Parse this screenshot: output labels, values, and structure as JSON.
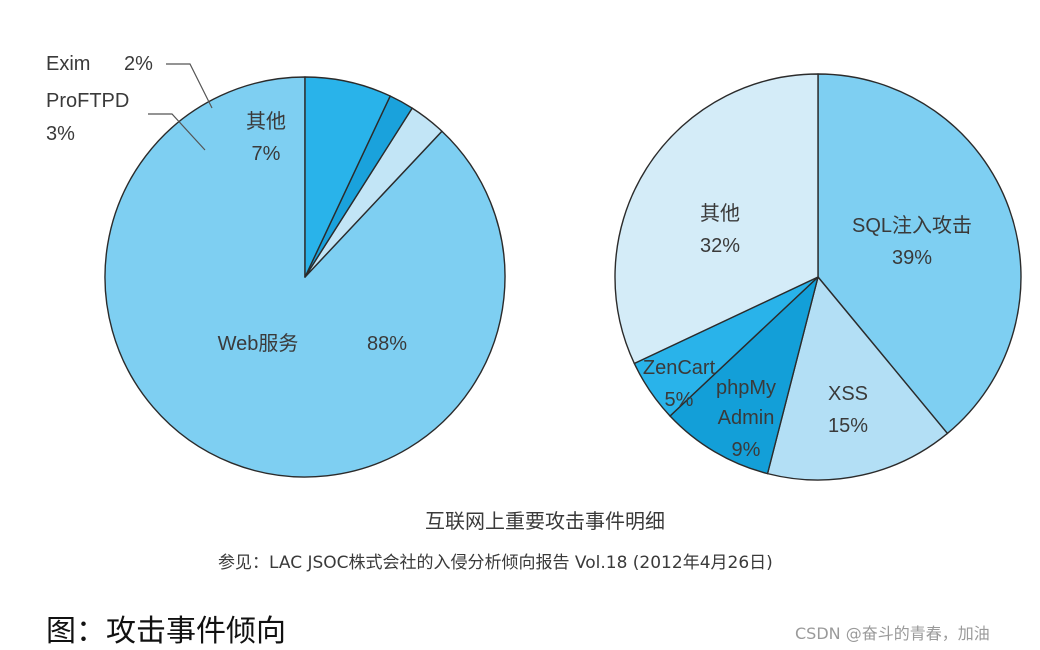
{
  "chart_data": [
    {
      "type": "pie",
      "slices": [
        {
          "label": "Web服务",
          "value": 88,
          "value_label": "88%",
          "color": "#7ecff2"
        },
        {
          "label": "ProFTPD",
          "value": 3,
          "value_label": "3%",
          "color": "#c2e5f6"
        },
        {
          "label": "Exim",
          "value": 2,
          "value_label": "2%",
          "color": "#1aa2dc"
        },
        {
          "label": "其他",
          "value": 7,
          "value_label": "7%",
          "color": "#29b3ea"
        }
      ]
    },
    {
      "type": "pie",
      "slices": [
        {
          "label": "SQL注入攻击",
          "value": 39,
          "value_label": "39%",
          "color": "#7ecff2"
        },
        {
          "label": "XSS",
          "value": 15,
          "value_label": "15%",
          "color": "#b3dff5"
        },
        {
          "label": "phpMy Admin",
          "value": 9,
          "value_label": "9%",
          "color": "#139fd8"
        },
        {
          "label": "ZenCart",
          "value": 5,
          "value_label": "5%",
          "color": "#29b3ea"
        },
        {
          "label": "其他",
          "value": 32,
          "value_label": "32%",
          "color": "#d4ecf8"
        }
      ]
    }
  ],
  "caption": "互联网上重要攻击事件明细",
  "source": "参见：LAC JSOC株式会社的入侵分析倾向报告 Vol.18 (2012年4月26日)",
  "figure_caption": "图：攻击事件倾向",
  "watermark": "CSDN @奋斗的青春，加油"
}
